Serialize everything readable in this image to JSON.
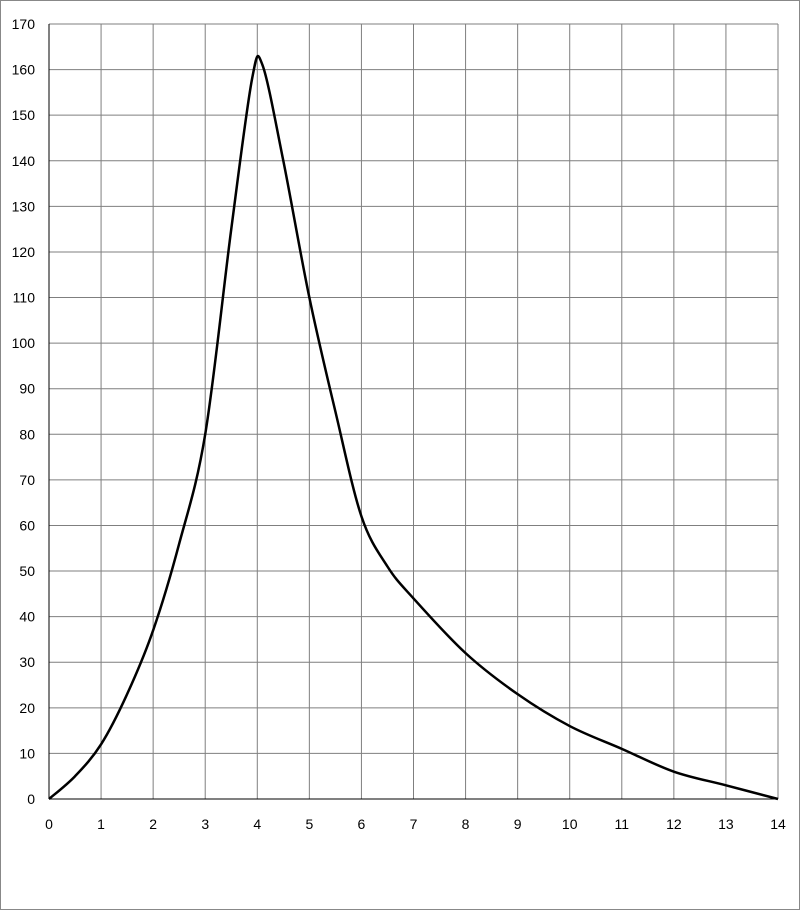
{
  "chart_data": {
    "type": "line",
    "title": "",
    "xlabel": "",
    "ylabel": "",
    "xlim": [
      0,
      14
    ],
    "ylim": [
      0,
      170
    ],
    "x_ticks": [
      "0",
      "1",
      "2",
      "3",
      "4",
      "5",
      "6",
      "7",
      "8",
      "9",
      "10",
      "11",
      "12",
      "13",
      "14"
    ],
    "y_ticks": [
      "0",
      "10",
      "20",
      "30",
      "40",
      "50",
      "60",
      "70",
      "80",
      "90",
      "100",
      "110",
      "120",
      "130",
      "140",
      "150",
      "160",
      "170"
    ],
    "grid": true,
    "legend": "none",
    "series": [
      {
        "color": "#000000",
        "x": [
          0,
          0.5,
          1,
          1.5,
          2,
          2.5,
          3,
          3.5,
          3.9,
          4.1,
          4.5,
          5,
          5.5,
          6,
          6.5,
          7,
          8,
          9,
          10,
          11,
          12,
          13,
          14
        ],
        "y": [
          0,
          5,
          12,
          23,
          37,
          56,
          80,
          125,
          158,
          161,
          140,
          110,
          85,
          62,
          51,
          44,
          32,
          23,
          16,
          11,
          6,
          3,
          0
        ]
      }
    ]
  }
}
